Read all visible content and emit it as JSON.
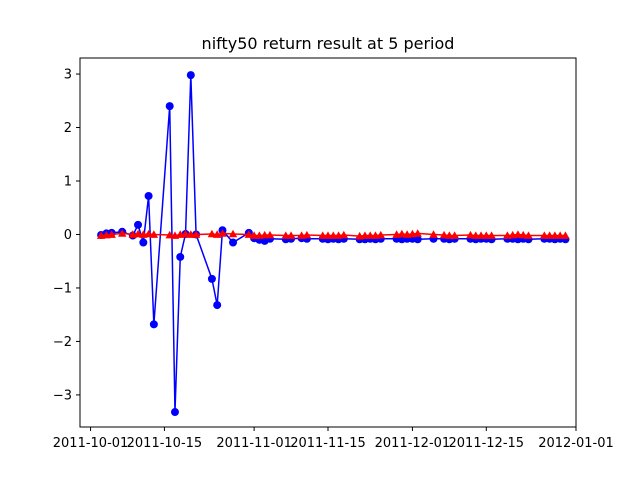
{
  "chart_data": {
    "type": "line",
    "title": "nifty50 return result at 5 period",
    "xlabel": "",
    "ylabel": "",
    "xlim": [
      "2011-09-29",
      "2012-01-01"
    ],
    "ylim": [
      -3.6,
      3.3
    ],
    "x_ticks": [
      "2011-10-01",
      "2011-10-15",
      "2011-11-01",
      "2011-11-15",
      "2011-12-01",
      "2011-12-15",
      "2012-01-01"
    ],
    "y_ticks": [
      -3,
      -2,
      -1,
      0,
      1,
      2,
      3
    ],
    "grid": false,
    "legend": null,
    "series": [
      {
        "color": "#0000ff",
        "marker": "circle",
        "x": [
          "2011-10-03",
          "2011-10-04",
          "2011-10-05",
          "2011-10-07",
          "2011-10-09",
          "2011-10-10",
          "2011-10-11",
          "2011-10-12",
          "2011-10-13",
          "2011-10-16",
          "2011-10-17",
          "2011-10-18",
          "2011-10-19",
          "2011-10-20",
          "2011-10-21",
          "2011-10-24",
          "2011-10-25",
          "2011-10-26",
          "2011-10-28",
          "2011-10-31",
          "2011-11-01",
          "2011-11-02",
          "2011-11-03",
          "2011-11-04",
          "2011-11-07",
          "2011-11-08",
          "2011-11-10",
          "2011-11-11",
          "2011-11-14",
          "2011-11-15",
          "2011-11-16",
          "2011-11-17",
          "2011-11-18",
          "2011-11-21",
          "2011-11-22",
          "2011-11-23",
          "2011-11-24",
          "2011-11-25",
          "2011-11-28",
          "2011-11-29",
          "2011-11-30",
          "2011-12-01",
          "2011-12-02",
          "2011-12-05",
          "2011-12-07",
          "2011-12-08",
          "2011-12-09",
          "2011-12-12",
          "2011-12-13",
          "2011-12-14",
          "2011-12-15",
          "2011-12-16",
          "2011-12-19",
          "2011-12-20",
          "2011-12-21",
          "2011-12-22",
          "2011-12-23",
          "2011-12-26",
          "2011-12-27",
          "2011-12-28",
          "2011-12-29",
          "2011-12-30"
        ],
        "y": [
          -0.01,
          0.02,
          0.03,
          0.05,
          -0.02,
          0.18,
          -0.15,
          0.72,
          -1.68,
          2.4,
          -3.32,
          -0.42,
          0.01,
          2.98,
          0.0,
          -0.83,
          -1.32,
          0.08,
          -0.15,
          0.03,
          -0.07,
          -0.1,
          -0.12,
          -0.08,
          -0.09,
          -0.08,
          -0.07,
          -0.08,
          -0.08,
          -0.09,
          -0.08,
          -0.09,
          -0.08,
          -0.09,
          -0.09,
          -0.08,
          -0.09,
          -0.08,
          -0.08,
          -0.09,
          -0.08,
          -0.08,
          -0.09,
          -0.08,
          -0.08,
          -0.09,
          -0.08,
          -0.08,
          -0.09,
          -0.08,
          -0.08,
          -0.09,
          -0.08,
          -0.08,
          -0.09,
          -0.08,
          -0.09,
          -0.08,
          -0.08,
          -0.09,
          -0.08,
          -0.09
        ]
      },
      {
        "color": "#ff0000",
        "marker": "triangle",
        "x": [
          "2011-10-03",
          "2011-10-04",
          "2011-10-05",
          "2011-10-07",
          "2011-10-09",
          "2011-10-10",
          "2011-10-11",
          "2011-10-12",
          "2011-10-13",
          "2011-10-16",
          "2011-10-17",
          "2011-10-18",
          "2011-10-19",
          "2011-10-20",
          "2011-10-21",
          "2011-10-24",
          "2011-10-25",
          "2011-10-26",
          "2011-10-28",
          "2011-10-31",
          "2011-11-01",
          "2011-11-02",
          "2011-11-03",
          "2011-11-04",
          "2011-11-07",
          "2011-11-08",
          "2011-11-10",
          "2011-11-11",
          "2011-11-14",
          "2011-11-15",
          "2011-11-16",
          "2011-11-17",
          "2011-11-18",
          "2011-11-21",
          "2011-11-22",
          "2011-11-23",
          "2011-11-24",
          "2011-11-25",
          "2011-11-28",
          "2011-11-29",
          "2011-11-30",
          "2011-12-01",
          "2011-12-02",
          "2011-12-05",
          "2011-12-07",
          "2011-12-08",
          "2011-12-09",
          "2011-12-12",
          "2011-12-13",
          "2011-12-14",
          "2011-12-15",
          "2011-12-16",
          "2011-12-19",
          "2011-12-20",
          "2011-12-21",
          "2011-12-22",
          "2011-12-23",
          "2011-12-26",
          "2011-12-27",
          "2011-12-28",
          "2011-12-29",
          "2011-12-30"
        ],
        "y": [
          -0.02,
          -0.01,
          0.0,
          0.02,
          0.0,
          0.01,
          0.0,
          0.01,
          0.0,
          -0.01,
          -0.02,
          0.0,
          0.01,
          0.0,
          0.0,
          0.01,
          0.0,
          0.02,
          0.01,
          0.0,
          -0.02,
          -0.02,
          -0.01,
          -0.01,
          -0.02,
          -0.02,
          -0.02,
          -0.01,
          -0.02,
          -0.02,
          -0.02,
          -0.02,
          -0.01,
          -0.03,
          -0.02,
          -0.02,
          -0.02,
          -0.01,
          0.0,
          0.01,
          0.0,
          0.01,
          0.02,
          0.0,
          -0.01,
          -0.02,
          -0.02,
          -0.01,
          -0.02,
          -0.02,
          -0.02,
          -0.02,
          -0.02,
          -0.01,
          0.0,
          -0.01,
          -0.02,
          -0.02,
          -0.02,
          -0.02,
          -0.02,
          -0.02
        ]
      }
    ]
  }
}
